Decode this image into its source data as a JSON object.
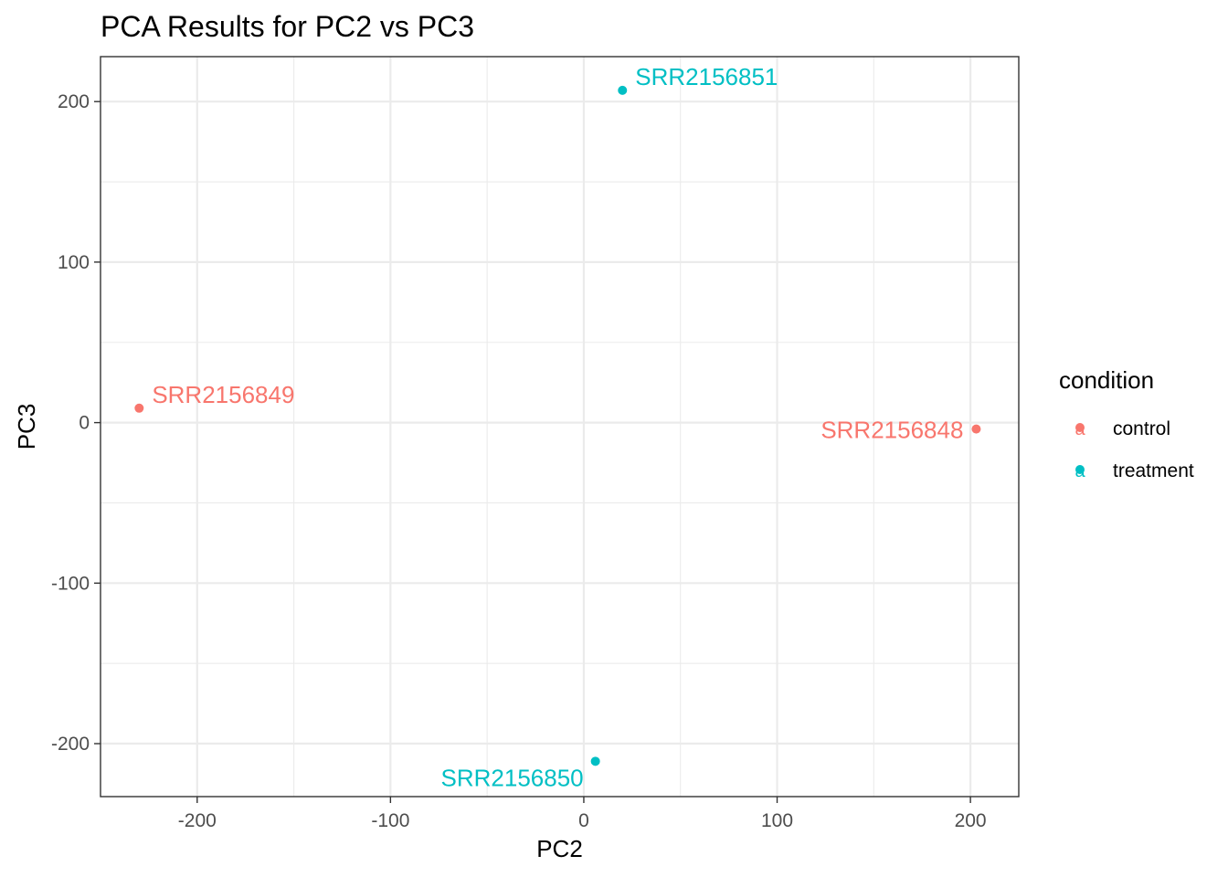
{
  "chart_data": {
    "type": "scatter",
    "title": "PCA Results for PC2 vs PC3",
    "xlabel": "PC2",
    "ylabel": "PC3",
    "xlim": [
      -250,
      225
    ],
    "ylim": [
      -233,
      228
    ],
    "x_ticks": [
      -200,
      -100,
      0,
      100,
      200
    ],
    "y_ticks": [
      -200,
      -100,
      0,
      100,
      200
    ],
    "grid": true,
    "legend": {
      "title": "condition",
      "position": "right",
      "entries": [
        {
          "name": "control",
          "color": "#F8766D"
        },
        {
          "name": "treatment",
          "color": "#00BFC4"
        }
      ]
    },
    "points": [
      {
        "label": "SRR2156848",
        "x": 203,
        "y": -4,
        "condition": "control",
        "label_side": "left"
      },
      {
        "label": "SRR2156849",
        "x": -230,
        "y": 9,
        "condition": "control",
        "label_side": "right"
      },
      {
        "label": "SRR2156850",
        "x": 6,
        "y": -211,
        "condition": "treatment",
        "label_side": "below-left"
      },
      {
        "label": "SRR2156851",
        "x": 20,
        "y": 207,
        "condition": "treatment",
        "label_side": "right"
      }
    ]
  }
}
